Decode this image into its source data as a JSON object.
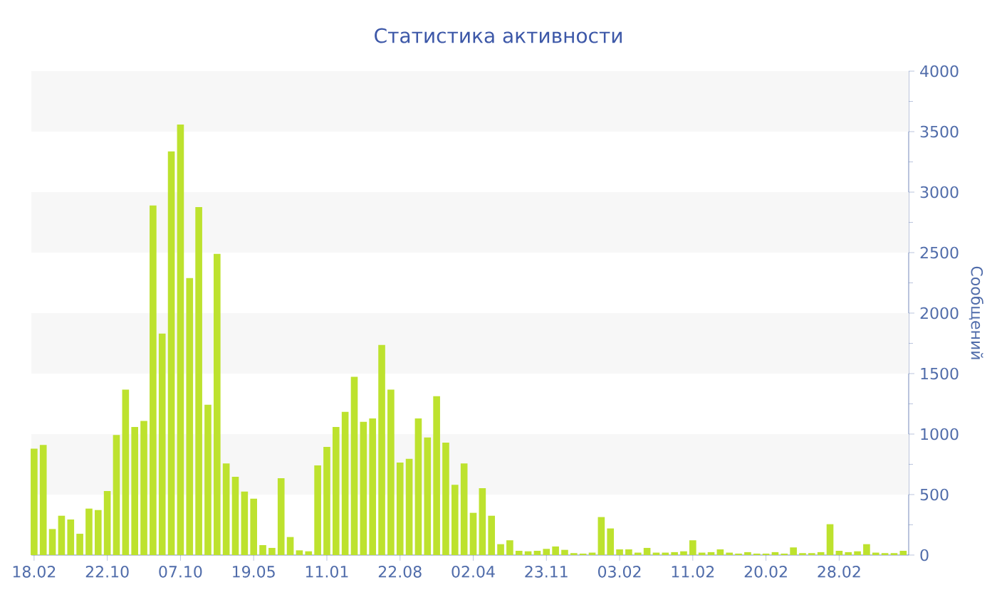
{
  "chart_data": {
    "type": "bar",
    "title": "Статистика активности",
    "ylabel": "Сообщений",
    "categories": [
      "18.02",
      null,
      null,
      null,
      null,
      null,
      null,
      null,
      "22.10",
      null,
      null,
      null,
      null,
      null,
      null,
      null,
      "07.10",
      null,
      null,
      null,
      null,
      null,
      null,
      null,
      "19.05",
      null,
      null,
      null,
      null,
      null,
      null,
      null,
      "11.01",
      null,
      null,
      null,
      null,
      null,
      null,
      null,
      "22.08",
      null,
      null,
      null,
      null,
      null,
      null,
      null,
      "02.04",
      null,
      null,
      null,
      null,
      null,
      null,
      null,
      "23.11",
      null,
      null,
      null,
      null,
      null,
      null,
      null,
      "03.02",
      null,
      null,
      null,
      null,
      null,
      null,
      null,
      "11.02",
      null,
      null,
      null,
      null,
      null,
      null,
      null,
      "20.02",
      null,
      null,
      null,
      null,
      null,
      null,
      null,
      "28.02",
      null,
      null,
      null,
      null,
      null,
      null,
      null
    ],
    "values": [
      880,
      910,
      215,
      325,
      294,
      176,
      384,
      372,
      529,
      992,
      1368,
      1058,
      1109,
      2889,
      1831,
      3336,
      3559,
      2289,
      2877,
      1243,
      2489,
      757,
      647,
      525,
      466,
      82,
      59,
      635,
      149,
      39,
      31,
      741,
      894,
      1058,
      1184,
      1474,
      1101,
      1129,
      1737,
      1368,
      764,
      796,
      1129,
      972,
      1313,
      929,
      580,
      757,
      349,
      553,
      325,
      90,
      122,
      35,
      31,
      35,
      51,
      71,
      43,
      16,
      12,
      20,
      314,
      220,
      47,
      47,
      20,
      59,
      20,
      20,
      24,
      31,
      122,
      20,
      24,
      47,
      20,
      12,
      24,
      12,
      12,
      24,
      12,
      63,
      16,
      16,
      24,
      255,
      35,
      24,
      31,
      90,
      20,
      16,
      16,
      35
    ],
    "color": "#bde22e",
    "ylim": [
      0,
      4000
    ],
    "yticks": [
      0,
      500,
      1000,
      1500,
      2000,
      2500,
      3000,
      3500,
      4000
    ],
    "bands": [
      {
        "axis": "y",
        "from": 500,
        "to": 1000,
        "color": "#f7f7f7"
      },
      {
        "axis": "y",
        "from": 1500,
        "to": 2000,
        "color": "#f7f7f7"
      },
      {
        "axis": "y",
        "from": 2500,
        "to": 3000,
        "color": "#f7f7f7"
      },
      {
        "axis": "y",
        "from": 3500,
        "to": 4000,
        "color": "#f7f7f7"
      }
    ]
  }
}
